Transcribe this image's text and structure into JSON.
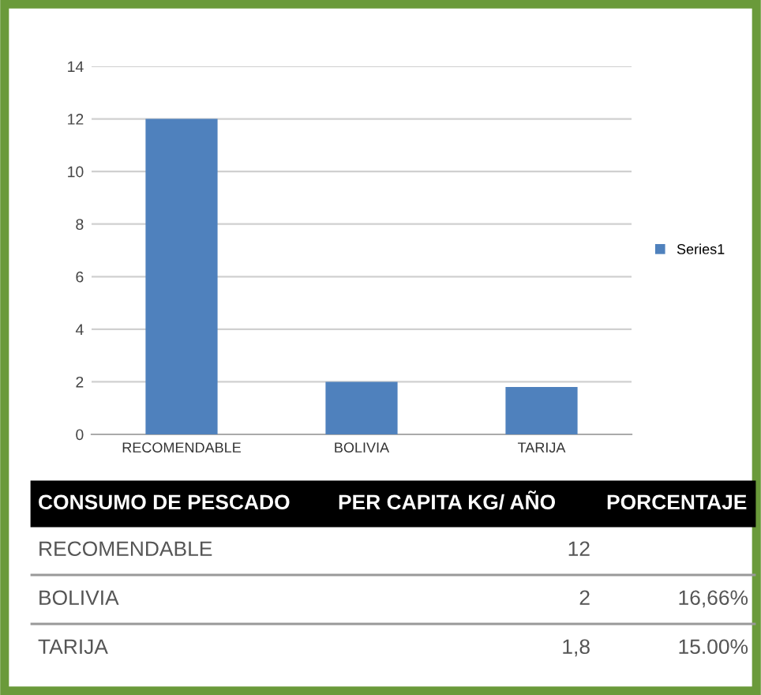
{
  "chart_data": {
    "type": "bar",
    "categories": [
      "RECOMENDABLE",
      "BOLIVIA",
      "TARIJA"
    ],
    "series": [
      {
        "name": "Series1",
        "color": "#4f81bd",
        "values": [
          12,
          2,
          1.8
        ]
      }
    ],
    "value_labels": [
      "12",
      "2",
      "1,8"
    ],
    "ylim": [
      0,
      14
    ],
    "yticks": [
      0,
      2,
      4,
      6,
      8,
      10,
      12,
      14
    ],
    "grid": "y",
    "legend": "right",
    "annotations": [
      "CONSUMO DE PESCADO",
      "PER CAPITA KG/ AÑO",
      "PORCENTAJE",
      "16,66%",
      "15.00%"
    ]
  }
}
